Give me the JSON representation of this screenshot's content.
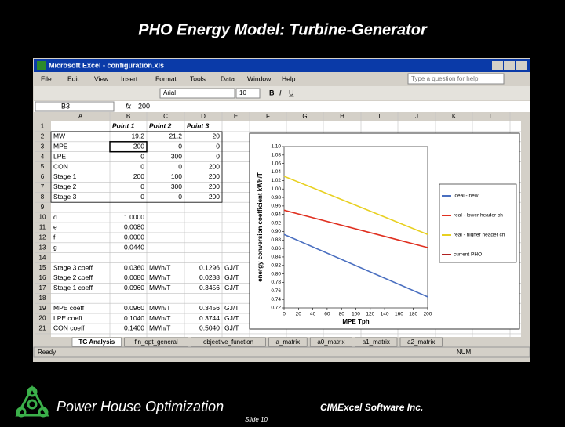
{
  "slide": {
    "title": "PHO Energy Model: Turbine-Generator",
    "footer_left": "Power House Optimization",
    "footer_right": "CIMExcel Software Inc.",
    "slide_number": "Slide 10"
  },
  "excel": {
    "window_title": "Microsoft Excel - configuration.xls",
    "menu": [
      "File",
      "Edit",
      "View",
      "Insert",
      "Format",
      "Tools",
      "Data",
      "Window",
      "Help"
    ],
    "help_box": "Type a question for help",
    "font_name": "Arial",
    "font_size": "10",
    "name_box": "B3",
    "formula_label": "fx",
    "formula": "200",
    "columns": [
      "A",
      "B",
      "C",
      "D",
      "E",
      "F",
      "G",
      "H",
      "I",
      "J",
      "K",
      "L"
    ],
    "rows": [
      {
        "number": "1",
        "cells": [
          null,
          "Point 1",
          "Point 2",
          "Point 3",
          null
        ]
      },
      {
        "number": "2",
        "cells": [
          "MW",
          "19.2",
          "21.2",
          "20",
          null
        ]
      },
      {
        "number": "3",
        "cells": [
          "MPE",
          "200",
          "0",
          "0",
          null
        ]
      },
      {
        "number": "4",
        "cells": [
          "LPE",
          "0",
          "300",
          "0",
          null
        ]
      },
      {
        "number": "5",
        "cells": [
          "CON",
          "0",
          "0",
          "200",
          null
        ]
      },
      {
        "number": "6",
        "cells": [
          "Stage 1",
          "200",
          "100",
          "200",
          null
        ]
      },
      {
        "number": "7",
        "cells": [
          "Stage 2",
          "0",
          "300",
          "200",
          null
        ]
      },
      {
        "number": "8",
        "cells": [
          "Stage 3",
          "0",
          "0",
          "200",
          null
        ]
      },
      {
        "number": "9",
        "cells": [
          null,
          null,
          null,
          null,
          null
        ]
      },
      {
        "number": "10",
        "cells": [
          "d",
          "1.0000",
          null,
          null,
          null
        ]
      },
      {
        "number": "11",
        "cells": [
          "e",
          "0.0080",
          null,
          null,
          null
        ]
      },
      {
        "number": "12",
        "cells": [
          "f",
          "0.0000",
          null,
          null,
          null
        ]
      },
      {
        "number": "13",
        "cells": [
          "g",
          "0.0440",
          null,
          null,
          null
        ]
      },
      {
        "number": "14",
        "cells": [
          null,
          null,
          null,
          null,
          null
        ]
      },
      {
        "number": "15",
        "cells": [
          "Stage 3 coeff",
          "0.0360",
          "MWh/T",
          "0.1296",
          "GJ/T"
        ]
      },
      {
        "number": "16",
        "cells": [
          "Stage 2 coeff",
          "0.0080",
          "MWh/T",
          "0.0288",
          "GJ/T"
        ]
      },
      {
        "number": "17",
        "cells": [
          "Stage 1 coeff",
          "0.0960",
          "MWh/T",
          "0.3456",
          "GJ/T"
        ]
      },
      {
        "number": "18",
        "cells": [
          null,
          null,
          null,
          null,
          null
        ]
      },
      {
        "number": "19",
        "cells": [
          "MPE coeff",
          "0.0960",
          "MWh/T",
          "0.3456",
          "GJ/T"
        ]
      },
      {
        "number": "20",
        "cells": [
          "LPE coeff",
          "0.1040",
          "MWh/T",
          "0.3744",
          "GJ/T"
        ]
      },
      {
        "number": "21",
        "cells": [
          "CON coeff",
          "0.1400",
          "MWh/T",
          "0.5040",
          "GJ/T"
        ]
      }
    ],
    "sheet_tabs": [
      "TG Analysis",
      "fin_opt_general",
      "objective_function",
      "a_matrix",
      "a0_matrix",
      "a1_matrix",
      "a2_matrix"
    ],
    "status": "Ready",
    "status_right": "NUM"
  },
  "chart": {
    "type": "line",
    "y_label": "energy conversion coefficient kWh/T",
    "x_label": "MPE Tph",
    "x": [
      0,
      200
    ],
    "xlim": [
      0,
      200
    ],
    "xticks": [
      0,
      20,
      40,
      60,
      80,
      100,
      120,
      140,
      160,
      180,
      200
    ],
    "ylim": [
      0.72,
      1.1
    ],
    "yticks": [
      {
        "value": 1.1,
        "label": "1.10"
      },
      1.08,
      1.06,
      1.04,
      1.02,
      {
        "value": 1.0,
        "label": "1.00"
      },
      0.98,
      0.96,
      0.94,
      0.92,
      {
        "value": 0.9,
        "label": "0.90"
      },
      0.88,
      0.86,
      0.84,
      0.82,
      {
        "value": 0.8,
        "label": "0.80"
      },
      0.78,
      0.76,
      0.74,
      0.72
    ],
    "series": [
      {
        "name": "ideal - new",
        "color": "#4a6fc0",
        "values": [
          0.893,
          0.746
        ]
      },
      {
        "name": "real - lower header ch",
        "color": "#e03020",
        "values": [
          0.95,
          0.862
        ]
      },
      {
        "name": "real - higher header ch",
        "color": "#e8d020",
        "values": [
          1.03,
          0.893
        ]
      },
      {
        "name": "current PHO",
        "color": "#b02020",
        "values": [
          null,
          null
        ]
      }
    ]
  }
}
